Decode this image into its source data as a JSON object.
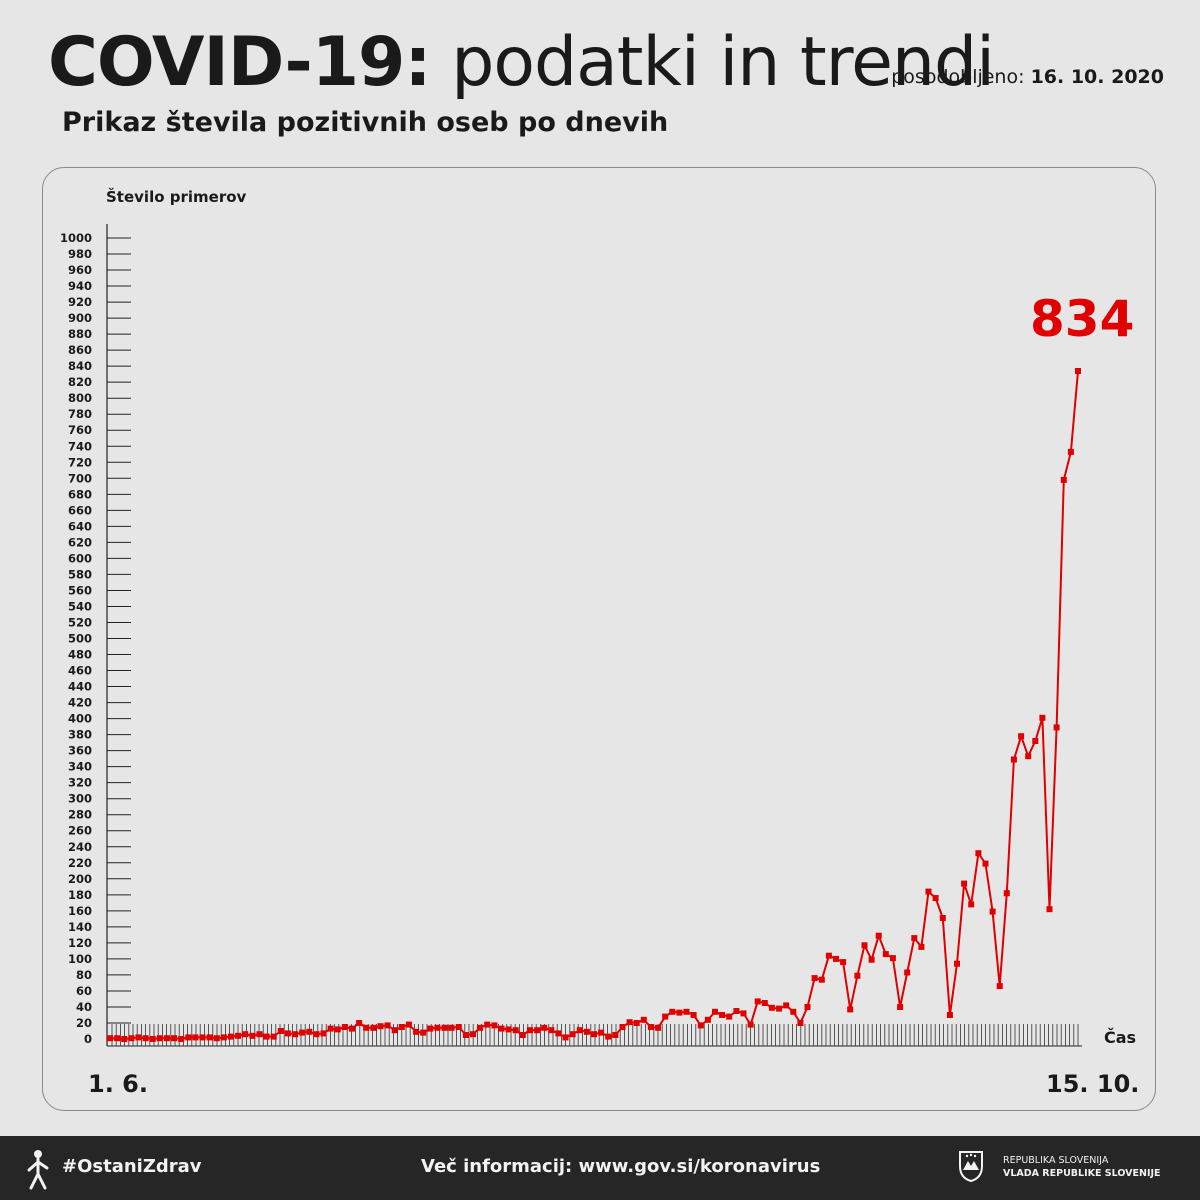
{
  "header": {
    "title_bold": "COVID-19:",
    "title_light": "podatki in trendi",
    "updated_label": "posodobljeno:",
    "updated_date": "16. 10. 2020",
    "subtitle": "Prikaz števila pozitivnih oseb po dnevih"
  },
  "chart_data": {
    "type": "line",
    "ylabel": "Število primerov",
    "xlabel": "Čas",
    "x_start_label": "1. 6.",
    "x_end_label": "15. 10.",
    "ylim": [
      0,
      1000
    ],
    "yticks": [
      0,
      20,
      40,
      60,
      80,
      100,
      120,
      140,
      160,
      180,
      200,
      220,
      240,
      260,
      280,
      300,
      320,
      340,
      360,
      380,
      400,
      420,
      440,
      460,
      480,
      500,
      520,
      540,
      560,
      580,
      600,
      620,
      640,
      660,
      680,
      700,
      720,
      740,
      760,
      780,
      800,
      820,
      840,
      860,
      880,
      900,
      920,
      940,
      960,
      980,
      1000
    ],
    "highlight_value": "834",
    "color": "#e10000",
    "series": [
      {
        "values": [
          1,
          1,
          0,
          1,
          2,
          1,
          0,
          1,
          1,
          1,
          0,
          2,
          2,
          2,
          2,
          1,
          2,
          3,
          4,
          6,
          4,
          6,
          3,
          3,
          10,
          7,
          6,
          8,
          9,
          6,
          7,
          13,
          12,
          15,
          13,
          20,
          14,
          14,
          16,
          17,
          11,
          15,
          18,
          9,
          8,
          13,
          14,
          14,
          14,
          15,
          5,
          6,
          14,
          18,
          17,
          13,
          12,
          11,
          5,
          11,
          11,
          14,
          11,
          7,
          2,
          6,
          11,
          9,
          6,
          8,
          3,
          5,
          15,
          21,
          20,
          24,
          15,
          14,
          28,
          34,
          33,
          34,
          30,
          17,
          24,
          34,
          30,
          28,
          35,
          32,
          18,
          47,
          45,
          39,
          38,
          42,
          34,
          20,
          40,
          76,
          74,
          104,
          100,
          96,
          37,
          79,
          117,
          99,
          129,
          106,
          101,
          40,
          83,
          126,
          115,
          184,
          176,
          151,
          30,
          94,
          194,
          168,
          232,
          219,
          159,
          66,
          182,
          349,
          378,
          353,
          372,
          401,
          162,
          389,
          698,
          733,
          834
        ]
      }
    ]
  },
  "footer": {
    "hashtag": "#OstaniZdrav",
    "info_label": "Več informacij:",
    "info_url": "www.gov.si/koronavirus",
    "gov_line1": "REPUBLIKA SLOVENIJA",
    "gov_line2": "VLADA REPUBLIKE SLOVENIJE"
  }
}
